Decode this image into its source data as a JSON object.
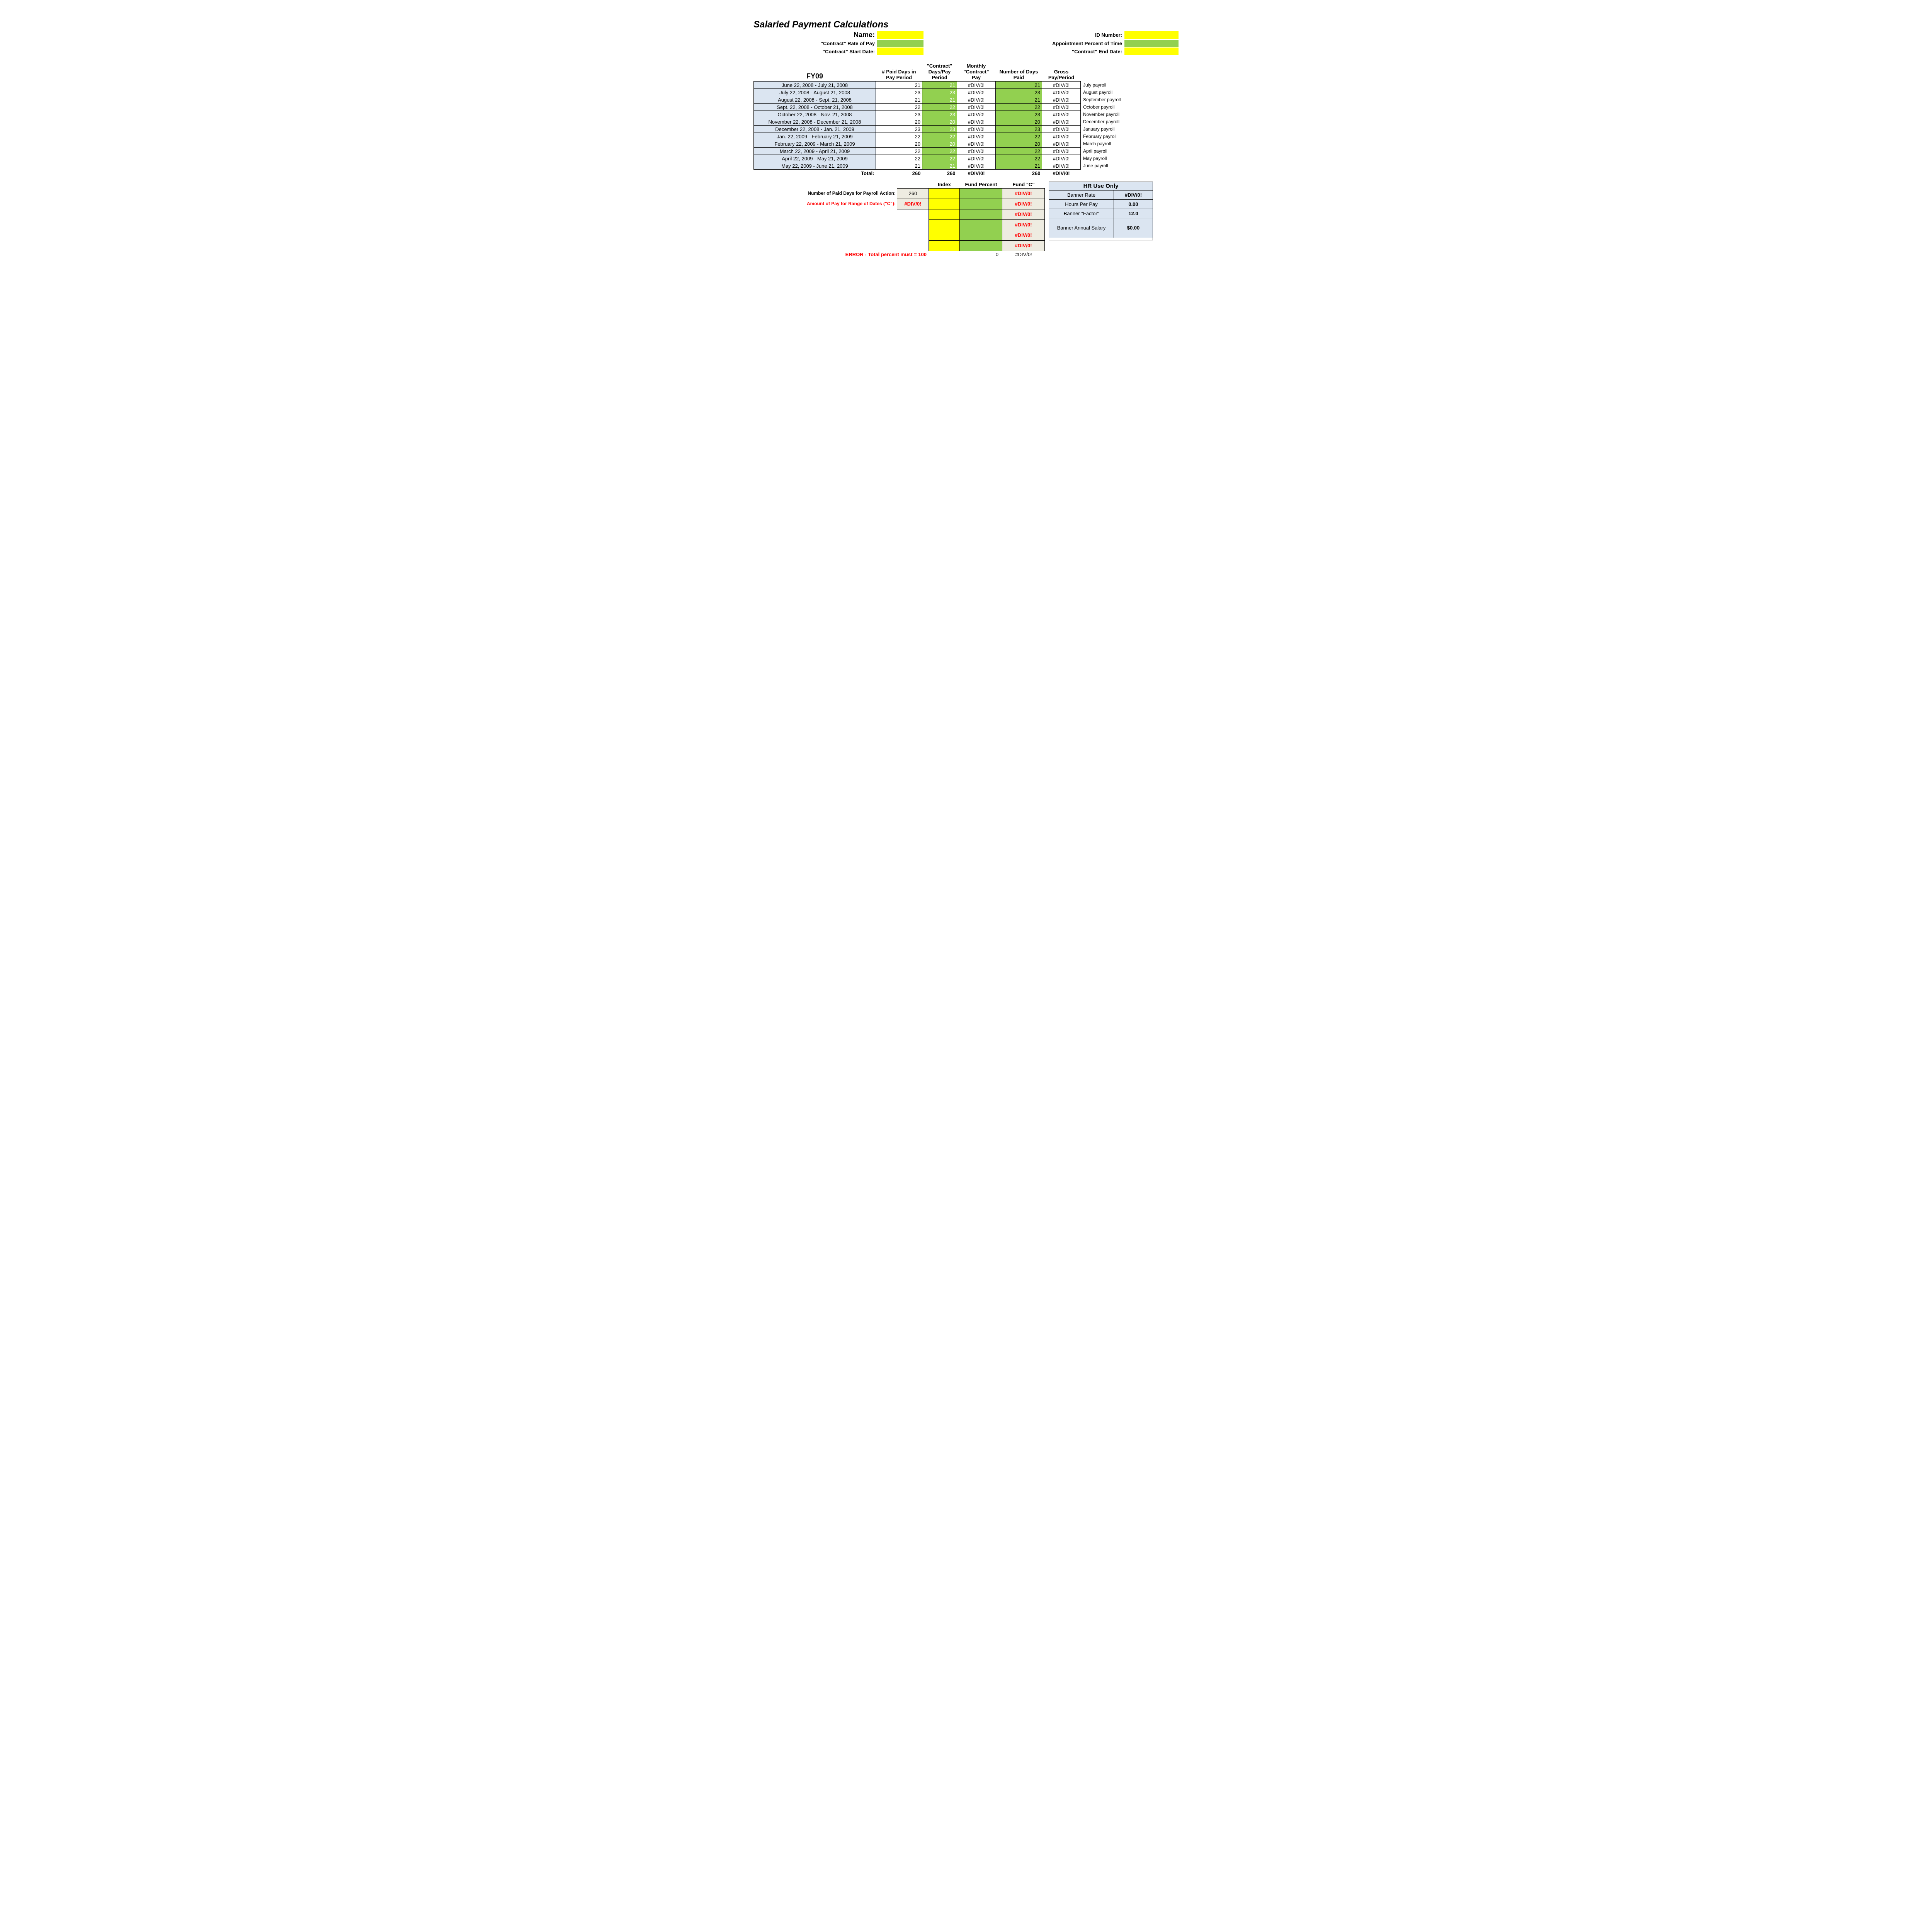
{
  "title": "Salaried Payment Calculations",
  "header": {
    "name_label": "Name:",
    "id_label": "ID Number:",
    "rate_label": "\"Contract\" Rate of Pay",
    "pct_label": "Appointment Percent of Time",
    "start_label": "\"Contract\" Start Date:",
    "end_label": "\"Contract\" End Date:"
  },
  "columns": {
    "fy": "FY09",
    "paid_days": "# Paid Days in Pay Period",
    "contract_days": "\"Contract\" Days/Pay Period",
    "monthly_pay": "Monthly \"Contract\" Pay",
    "num_paid": "Number of Days Paid",
    "gross": "Gross Pay/Period"
  },
  "rows": [
    {
      "period": "June 22, 2008 - July 21, 2008",
      "paid": "21",
      "cdays": "21",
      "mpay": "#DIV/0!",
      "npaid": "21",
      "gross": "#DIV/0!",
      "note": "July payroll"
    },
    {
      "period": "July 22, 2008 - August 21, 2008",
      "paid": "23",
      "cdays": "23",
      "mpay": "#DIV/0!",
      "npaid": "23",
      "gross": "#DIV/0!",
      "note": "August payroll"
    },
    {
      "period": "August 22, 2008 - Sept. 21, 2008",
      "paid": "21",
      "cdays": "21",
      "mpay": "#DIV/0!",
      "npaid": "21",
      "gross": "#DIV/0!",
      "note": "September payroll"
    },
    {
      "period": "Sept. 22, 2008 - October 21, 2008",
      "paid": "22",
      "cdays": "22",
      "mpay": "#DIV/0!",
      "npaid": "22",
      "gross": "#DIV/0!",
      "note": "October payroll"
    },
    {
      "period": "October 22, 2008 - Nov. 21, 2008",
      "paid": "23",
      "cdays": "23",
      "mpay": "#DIV/0!",
      "npaid": "23",
      "gross": "#DIV/0!",
      "note": "November payroll"
    },
    {
      "period": "November 22, 2008 - December 21, 2008",
      "paid": "20",
      "cdays": "20",
      "mpay": "#DIV/0!",
      "npaid": "20",
      "gross": "#DIV/0!",
      "note": "December payroll"
    },
    {
      "period": "December 22, 2008 - Jan. 21, 2009",
      "paid": "23",
      "cdays": "23",
      "mpay": "#DIV/0!",
      "npaid": "23",
      "gross": "#DIV/0!",
      "note": "January payroll"
    },
    {
      "period": "Jan. 22, 2009 - February 21, 2009",
      "paid": "22",
      "cdays": "22",
      "mpay": "#DIV/0!",
      "npaid": "22",
      "gross": "#DIV/0!",
      "note": "February payroll"
    },
    {
      "period": "February 22, 2009 - March 21, 2009",
      "paid": "20",
      "cdays": "20",
      "mpay": "#DIV/0!",
      "npaid": "20",
      "gross": "#DIV/0!",
      "note": "March payroll"
    },
    {
      "period": "March 22, 2009 - April 21, 2009",
      "paid": "22",
      "cdays": "22",
      "mpay": "#DIV/0!",
      "npaid": "22",
      "gross": "#DIV/0!",
      "note": "April payroll"
    },
    {
      "period": "April 22, 2009 - May 21, 2009",
      "paid": "22",
      "cdays": "22",
      "mpay": "#DIV/0!",
      "npaid": "22",
      "gross": "#DIV/0!",
      "note": "May payroll"
    },
    {
      "period": "May 22, 2009 - June 21, 2009",
      "paid": "21",
      "cdays": "21",
      "mpay": "#DIV/0!",
      "npaid": "21",
      "gross": "#DIV/0!",
      "note": "June payroll"
    }
  ],
  "totals": {
    "label": "Total:",
    "paid": "260",
    "cdays": "260",
    "mpay": "#DIV/0!",
    "npaid": "260",
    "gross": "#DIV/0!"
  },
  "lower": {
    "index_h": "Index",
    "fundpct_h": "Fund Percent",
    "fundc_h": "Fund \"C\"",
    "numdays_lbl": "Number of Paid Days for Payroll Action:",
    "numdays_val": "260",
    "amount_lbl": "Amount of Pay for Range of Dates (\"C\"):",
    "amount_val": "#DIV/0!",
    "fundc_vals": [
      "#DIV/0!",
      "#DIV/0!",
      "#DIV/0!",
      "#DIV/0!",
      "#DIV/0!",
      "#DIV/0!"
    ],
    "err_msg": "ERROR - Total percent must = 100",
    "err_zero": "0",
    "err_div": "#DIV/0!"
  },
  "hr": {
    "title": "HR Use Only",
    "rows": [
      {
        "l": "Banner Rate",
        "v": "#DIV/0!"
      },
      {
        "l": "Hours Per Pay",
        "v": "0.00"
      },
      {
        "l": "Banner \"Factor\"",
        "v": "12.0"
      },
      {
        "l": "Banner Annual Salary",
        "v": "$0.00"
      }
    ]
  },
  "colors": {
    "yellow": "#ffff00",
    "green": "#92d050",
    "blue": "#dbe5f1",
    "beige": "#eeece1",
    "red": "#ff0000"
  }
}
